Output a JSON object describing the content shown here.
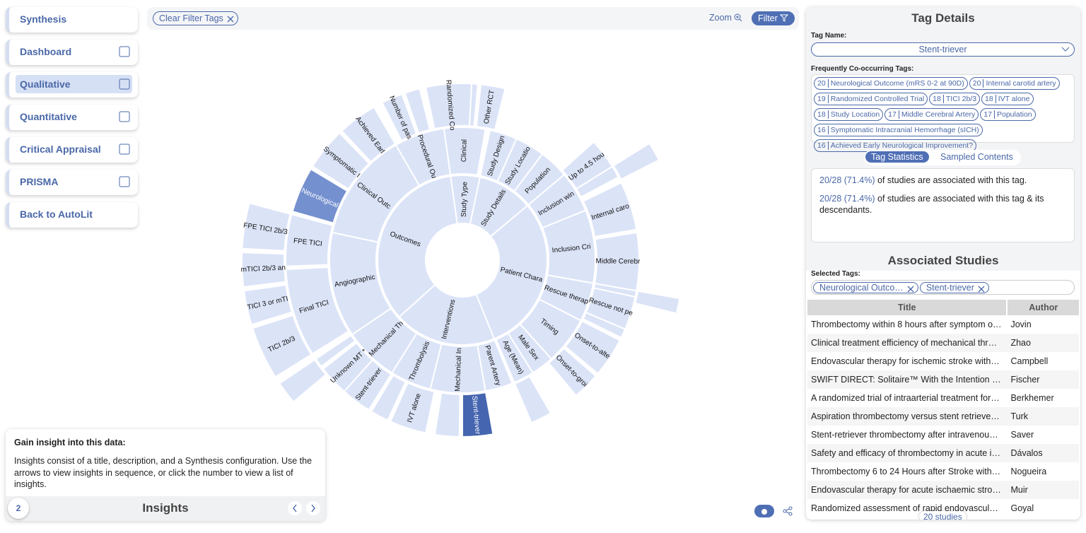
{
  "nav": [
    "Synthesis",
    "Dashboard",
    "Qualitative",
    "Quantitative",
    "Critical Appraisal",
    "PRISMA",
    "Back to AutoLit"
  ],
  "toolbar": {
    "clear": "Clear Filter Tags",
    "zoom": "Zoom",
    "filter": "Filter"
  },
  "sunburst": {
    "labels": [
      "Outcomes",
      "Study Type",
      "Study Details",
      "Patient Chara",
      "Interventions",
      "Clinical",
      "Study Design",
      "Study Locatio",
      "Population",
      "Inclusion win",
      "Inclusion Cri",
      "Rescue therap",
      "Timing",
      "Male Sex",
      "Age (Mean)",
      "Parent Artery",
      "Mechanical In",
      "Thrombolysis",
      "Mechanical Th",
      "Angiographic",
      "Clinical Outc",
      "Procedural Ou",
      "Number of pas",
      "Randomized Co",
      "Other RCT",
      "Up to 4.5 hou",
      "Internal caro",
      "Middle Cerebr",
      "Rescue not pe",
      "Onset-to-alte",
      "Onset-to-groi",
      "Stent-triever",
      "IVT alone",
      "Stent-triever",
      "Unknown MT *",
      "Final TICI",
      "FPE TICI",
      "Neurological",
      "Symptomatic I",
      "Achieved Earl",
      "TICI 2b/3",
      "TICI 3 or mTI",
      "mTICI 2b/3 an",
      "FPE TICI 2b/3"
    ]
  },
  "insights": {
    "heading": "Gain insight into this data:",
    "text": "Insights consist of a title, description, and a Synthesis configuration. Use the arrows to view insights in sequence, or click the number to view a list of insights.",
    "count": 2,
    "title": "Insights"
  },
  "tag_details": {
    "title": "Tag Details",
    "tag_name_label": "Tag Name:",
    "tag_name": "Stent-triever",
    "cooccur_label": "Frequently Co-occurring Tags:",
    "cooccur": [
      {
        "count": 20,
        "name": "Neurological Outcome (mRS 0-2 at 90D)"
      },
      {
        "count": 20,
        "name": "Internal carotid artery"
      },
      {
        "count": 19,
        "name": "Randomized Controlled Trial"
      },
      {
        "count": 18,
        "name": "TICI 2b/3"
      },
      {
        "count": 18,
        "name": "IVT alone"
      },
      {
        "count": 18,
        "name": "Study Location"
      },
      {
        "count": 17,
        "name": "Middle Cerebral Artery"
      },
      {
        "count": 17,
        "name": "Population"
      },
      {
        "count": 16,
        "name": "Symptomatic Intracranial Hemorrhage (sICH)"
      },
      {
        "count": 16,
        "name": "Achieved Early Neurological Improvement?"
      }
    ],
    "tabs": [
      "Tag Statistics",
      "Sampled Contents"
    ],
    "stats": [
      {
        "ratio": "20/28 (71.4%)",
        "text": "of studies are associated with this tag."
      },
      {
        "ratio": "20/28 (71.4%)",
        "text": "of studies are associated with this tag & its descendants."
      }
    ]
  },
  "associated": {
    "title": "Associated Studies",
    "selected_label": "Selected Tags:",
    "selected": [
      "Neurological Outco…",
      "Stent-triever"
    ],
    "columns": [
      "Title",
      "Author"
    ],
    "rows": [
      [
        "Thrombectomy within 8 hours after symptom o…",
        "Jovin"
      ],
      [
        "Clinical treatment efficiency of mechanical thr…",
        "Zhao"
      ],
      [
        "Endovascular therapy for ischemic stroke with…",
        "Campbell"
      ],
      [
        "SWIFT DIRECT: Solitaire™ With the Intention …",
        "Fischer"
      ],
      [
        "A randomized trial of intraarterial treatment for…",
        "Berkhemer"
      ],
      [
        "Aspiration thrombectomy versus stent retrieve…",
        "Turk"
      ],
      [
        "Stent-retriever thrombectomy after intravenou…",
        "Saver"
      ],
      [
        "Safety and efficacy of thrombectomy in acute i…",
        "Dávalos"
      ],
      [
        "Thrombectomy 6 to 24 Hours after Stroke with…",
        "Nogueira"
      ],
      [
        "Endovascular therapy for acute ischaemic stro…",
        "Muir"
      ],
      [
        "Randomized assessment of rapid endovascul…",
        "Goyal"
      ]
    ],
    "footer": "20 studies"
  }
}
